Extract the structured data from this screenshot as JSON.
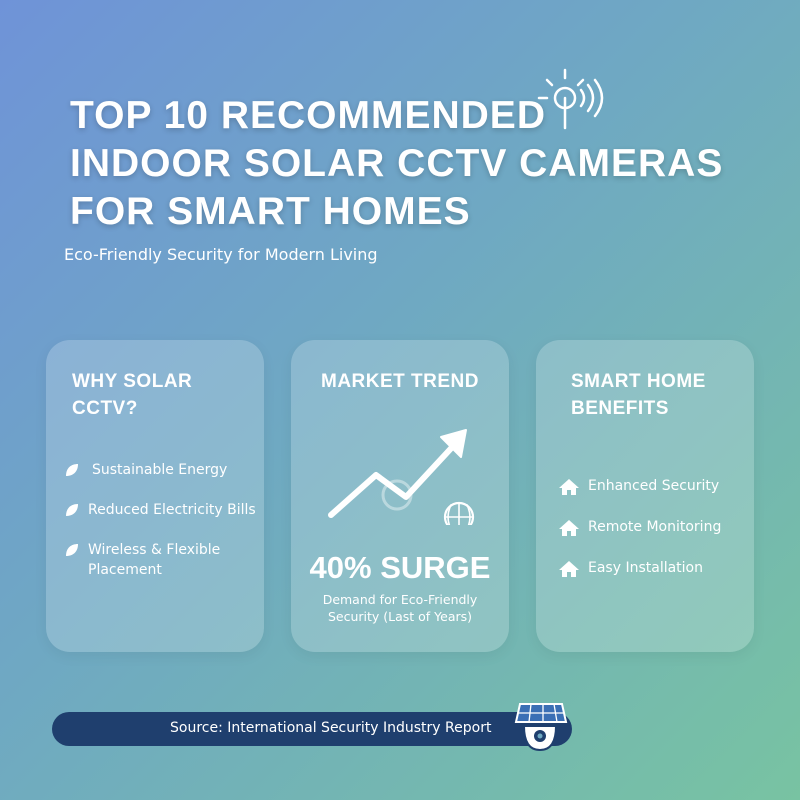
{
  "header": {
    "title_lines": [
      "TOP 10 RECOMMENDED",
      "INDOOR SOLAR CCTV CAMERAS",
      "FOR SMART HOMES"
    ],
    "subtitle": "Eco-Friendly Security for Modern Living"
  },
  "cards": [
    {
      "title": "WHY SOLAR CCTV?",
      "items": [
        "Sustainable Energy",
        "Reduced Electricity Bills",
        "Wireless & Flexible Placement"
      ]
    },
    {
      "title": "MARKET TREND",
      "stat": "40% SURGE",
      "caption": "Demand for Eco-Friendly Security (Last of Years)"
    },
    {
      "title": "SMART HOME BENEFITS",
      "items": [
        "Enhanced Security",
        "Remote Monitoring",
        "Easy Installation"
      ]
    }
  ],
  "footer": {
    "source": "Source: International Security Industry Report"
  }
}
